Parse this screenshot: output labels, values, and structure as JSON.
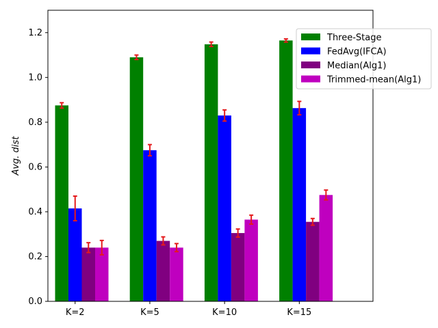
{
  "chart_data": {
    "type": "bar",
    "title": "",
    "xlabel": "",
    "ylabel": "Avg. dist",
    "ylim": [
      0,
      1.3
    ],
    "yticks": [
      "0.0",
      "0.2",
      "0.4",
      "0.6",
      "0.8",
      "1.0",
      "1.2"
    ],
    "grid": false,
    "legend_position": "top-right",
    "categories": [
      "K=2",
      "K=5",
      "K=10",
      "K=15"
    ],
    "error_bar_color": "#e41a1c",
    "series": [
      {
        "name": "Three-Stage",
        "color": "#008000",
        "values": [
          0.875,
          1.09,
          1.148,
          1.165
        ],
        "errors": [
          0.012,
          0.01,
          0.01,
          0.007
        ]
      },
      {
        "name": "FedAvg(IFCA)",
        "color": "#0000ff",
        "values": [
          0.415,
          0.675,
          0.83,
          0.863
        ],
        "errors": [
          0.055,
          0.025,
          0.025,
          0.03
        ]
      },
      {
        "name": "Median(Alg1)",
        "color": "#800080",
        "values": [
          0.24,
          0.27,
          0.305,
          0.355
        ],
        "errors": [
          0.022,
          0.018,
          0.018,
          0.015
        ]
      },
      {
        "name": "Trimmed-mean(Alg1)",
        "color": "#bf00bf",
        "values": [
          0.24,
          0.24,
          0.365,
          0.475
        ],
        "errors": [
          0.032,
          0.018,
          0.02,
          0.022
        ]
      }
    ]
  }
}
